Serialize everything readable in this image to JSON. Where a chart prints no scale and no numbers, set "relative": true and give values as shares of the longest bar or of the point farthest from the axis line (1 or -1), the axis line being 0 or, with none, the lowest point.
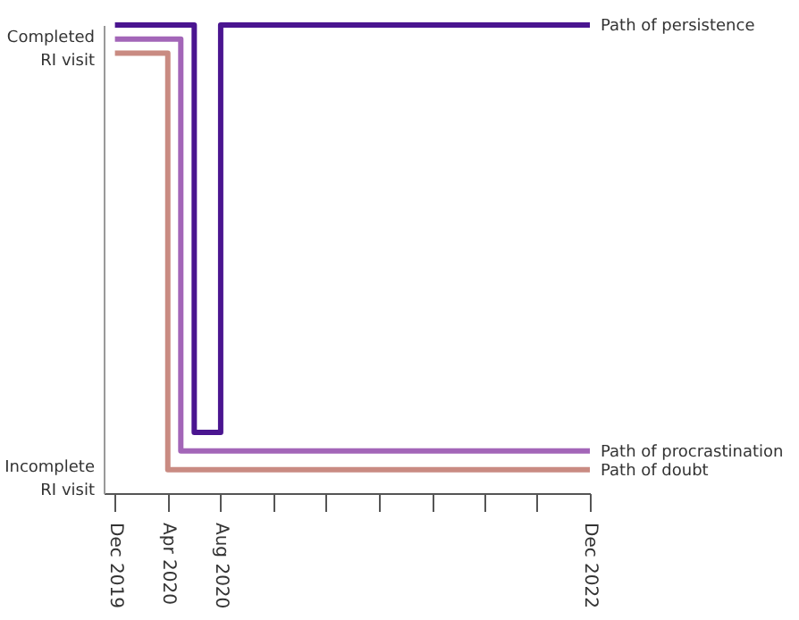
{
  "chart_data": {
    "type": "step",
    "relative": true,
    "series": [
      {
        "name": "Path of persistence",
        "color": "#4a1590",
        "x": [
          "2019-12",
          "2020-06",
          "2020-08",
          "2022-12"
        ],
        "values": [
          1,
          0.13,
          1,
          1
        ]
      },
      {
        "name": "Path of procrastination",
        "color": "#a366b8",
        "x": [
          "2019-12",
          "2020-05",
          "2022-12"
        ],
        "values": [
          0.97,
          0.09,
          0.09
        ]
      },
      {
        "name": "Path of doubt",
        "color": "#c98b82",
        "x": [
          "2019-12",
          "2020-04",
          "2022-12"
        ],
        "values": [
          0.94,
          0.05,
          0.05
        ]
      }
    ],
    "xlim": [
      "2019-11-05",
      "2022-12"
    ],
    "xticks": [
      {
        "value": "2019-12",
        "label": "Dec 2019"
      },
      {
        "value": "2020-04",
        "label": "Apr 2020"
      },
      {
        "value": "2020-08",
        "label": "Aug 2020"
      },
      {
        "value": "2020-12",
        "label": null
      },
      {
        "value": "2021-04",
        "label": null
      },
      {
        "value": "2021-08",
        "label": null
      },
      {
        "value": "2021-12",
        "label": null
      },
      {
        "value": "2022-04",
        "label": null
      },
      {
        "value": "2022-08",
        "label": null
      },
      {
        "value": "2022-12",
        "label": "Dec 2022"
      }
    ],
    "annotations": [
      "Completed RI visit",
      "Incomplete RI visit"
    ]
  }
}
